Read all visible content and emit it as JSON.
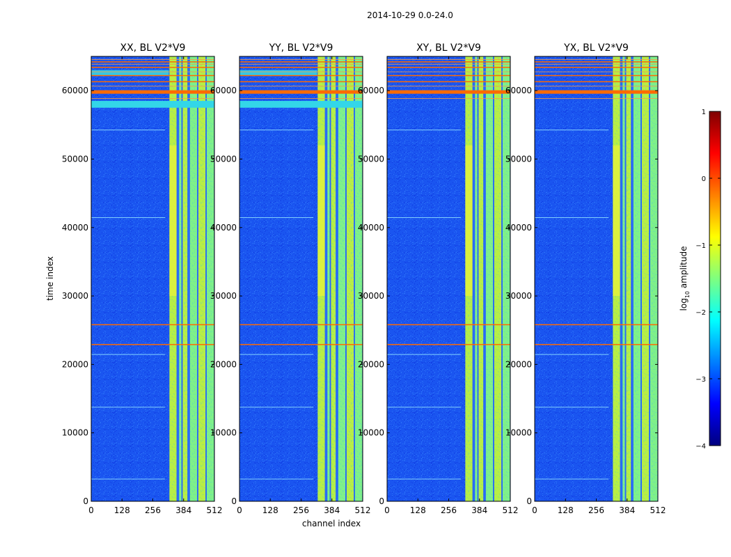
{
  "figure": {
    "suptitle": "2014-10-29 0.0-24.0",
    "xlabel": "channel index",
    "ylabel": "time index"
  },
  "chart_data": [
    {
      "type": "heatmap",
      "title": "XX, BL V2*V9",
      "xlim": [
        0,
        512
      ],
      "ylim": [
        0,
        65000
      ],
      "xticks": [
        0,
        128,
        256,
        384,
        512
      ],
      "yticks": [
        0,
        10000,
        20000,
        30000,
        40000,
        50000,
        60000
      ],
      "bright_channel_ranges": [
        [
          325,
          355
        ],
        [
          365,
          375
        ],
        [
          380,
          400
        ],
        [
          410,
          440
        ],
        [
          445,
          475
        ],
        [
          480,
          510
        ]
      ],
      "hot_time_rows": [
        25800,
        22900,
        59800,
        61300,
        62200,
        63400,
        64200
      ],
      "flagged_time_band": [
        57500,
        58500
      ]
    },
    {
      "type": "heatmap",
      "title": "YY, BL V2*V9",
      "xlim": [
        0,
        512
      ],
      "ylim": [
        0,
        65000
      ],
      "xticks": [
        0,
        128,
        256,
        384,
        512
      ],
      "yticks": [
        0,
        10000,
        20000,
        30000,
        40000,
        50000,
        60000
      ],
      "bright_channel_ranges": [
        [
          325,
          355
        ],
        [
          365,
          375
        ],
        [
          380,
          400
        ],
        [
          410,
          440
        ],
        [
          445,
          475
        ],
        [
          480,
          510
        ]
      ],
      "hot_time_rows": [
        25800,
        22900,
        59800,
        61300,
        62200,
        63400,
        64200
      ],
      "flagged_time_band": [
        57500,
        58500
      ]
    },
    {
      "type": "heatmap",
      "title": "XY, BL V2*V9",
      "xlim": [
        0,
        512
      ],
      "ylim": [
        0,
        65000
      ],
      "xticks": [
        0,
        128,
        256,
        384,
        512
      ],
      "yticks": [
        0,
        10000,
        20000,
        30000,
        40000,
        50000,
        60000
      ],
      "bright_channel_ranges": [
        [
          325,
          355
        ],
        [
          365,
          375
        ],
        [
          380,
          400
        ],
        [
          410,
          440
        ],
        [
          445,
          475
        ],
        [
          480,
          510
        ]
      ],
      "hot_time_rows": [
        25800,
        22900,
        59800,
        61300,
        62200,
        63400,
        64200
      ],
      "flagged_time_band": null
    },
    {
      "type": "heatmap",
      "title": "YX, BL V2*V9",
      "xlim": [
        0,
        512
      ],
      "ylim": [
        0,
        65000
      ],
      "xticks": [
        0,
        128,
        256,
        384,
        512
      ],
      "yticks": [
        0,
        10000,
        20000,
        30000,
        40000,
        50000,
        60000
      ],
      "bright_channel_ranges": [
        [
          325,
          355
        ],
        [
          365,
          375
        ],
        [
          380,
          400
        ],
        [
          410,
          440
        ],
        [
          445,
          475
        ],
        [
          480,
          510
        ]
      ],
      "hot_time_rows": [
        25800,
        22900,
        59800,
        61300,
        62200,
        63400,
        64200
      ],
      "flagged_time_band": null
    }
  ],
  "colorbar": {
    "label": "log10 amplitude",
    "label_main": "log",
    "label_sub": "10",
    "label_rest": " amplitude",
    "range": [
      -4,
      1
    ],
    "ticks": [
      1,
      0,
      -1,
      -2,
      -3,
      -4
    ],
    "tick_labels": [
      "1",
      "0",
      "−1",
      "−2",
      "−3",
      "−4"
    ],
    "colormap": "jet",
    "colors": [
      "#00007f",
      "#0000ff",
      "#007fff",
      "#00ffff",
      "#7fff7f",
      "#ffff00",
      "#ff7f00",
      "#ff0000",
      "#7f0000"
    ]
  },
  "colors": {
    "background_cell": "#1a55f0",
    "hot_row": "#ff6a00",
    "bright_channel": "#c8f03c"
  }
}
